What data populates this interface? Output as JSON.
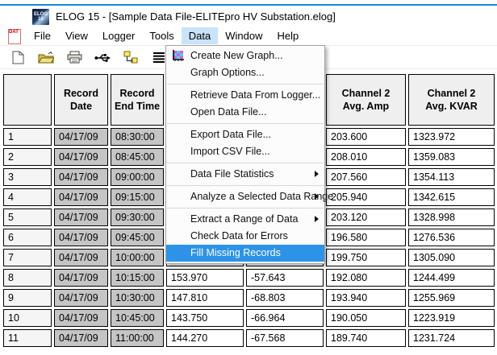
{
  "window": {
    "title": "ELOG 15 - [Sample Data File-ELITEpro HV Substation.elog]",
    "app_icon_text": "ELOG 15",
    "doc_icon_text": "DAT",
    "accent_line_color": "#1d85d8"
  },
  "menubar": {
    "items": [
      "File",
      "View",
      "Logger",
      "Tools",
      "Data",
      "Window",
      "Help"
    ],
    "active_item": "Data",
    "active_bg": "#c9e3f8"
  },
  "toolbar": {
    "icons": [
      {
        "name": "new-file-icon",
        "enabled": true
      },
      {
        "name": "open-file-icon",
        "enabled": true
      },
      {
        "name": "print-icon",
        "enabled": true
      },
      {
        "name": "usb-connection-icon",
        "enabled": true
      },
      {
        "name": "retrieve-data-icon",
        "enabled": true
      },
      {
        "name": "data-list-icon",
        "enabled": true
      },
      {
        "name": "disconnect-icon",
        "enabled": false
      }
    ]
  },
  "data_menu": {
    "highlight_color": "#2d93e8",
    "items": [
      {
        "type": "item",
        "label": "Create New Graph...",
        "icon": "graph-icon"
      },
      {
        "type": "item",
        "label": "Graph Options..."
      },
      {
        "type": "sep"
      },
      {
        "type": "item",
        "label": "Retrieve Data From Logger..."
      },
      {
        "type": "item",
        "label": "Open Data File..."
      },
      {
        "type": "sep"
      },
      {
        "type": "item",
        "label": "Export Data File..."
      },
      {
        "type": "item",
        "label": "Import CSV File..."
      },
      {
        "type": "sep"
      },
      {
        "type": "item",
        "label": "Data File Statistics",
        "submenu": true
      },
      {
        "type": "sep"
      },
      {
        "type": "item",
        "label": "Analyze a Selected Data Range",
        "submenu": true
      },
      {
        "type": "sep"
      },
      {
        "type": "item",
        "label": "Extract a Range of Data",
        "submenu": true
      },
      {
        "type": "item",
        "label": "Check Data for Errors"
      },
      {
        "type": "item",
        "label": "Fill Missing Records",
        "highlighted": true
      }
    ]
  },
  "table": {
    "headers": [
      "",
      "Record\nDate",
      "Record\nEnd Time",
      "",
      "",
      "Channel 2\nAvg. Amp",
      "Channel 2\nAvg. KVAR"
    ],
    "rows": [
      [
        "1",
        "04/17/09",
        "08:30:00",
        "",
        "",
        "203.600",
        "1323.972"
      ],
      [
        "2",
        "04/17/09",
        "08:45:00",
        "",
        "",
        "208.010",
        "1359.083"
      ],
      [
        "3",
        "04/17/09",
        "09:00:00",
        "",
        "",
        "207.560",
        "1354.113"
      ],
      [
        "4",
        "04/17/09",
        "09:15:00",
        "",
        "",
        "205.940",
        "1342.615"
      ],
      [
        "5",
        "04/17/09",
        "09:30:00",
        "",
        "",
        "203.120",
        "1328.998"
      ],
      [
        "6",
        "04/17/09",
        "09:45:00",
        "",
        "",
        "196.580",
        "1276.536"
      ],
      [
        "7",
        "04/17/09",
        "10:00:00",
        "",
        "",
        "199.750",
        "1305.090"
      ],
      [
        "8",
        "04/17/09",
        "10:15:00",
        "153.970",
        "-57.643",
        "192.080",
        "1244.499"
      ],
      [
        "9",
        "04/17/09",
        "10:30:00",
        "147.810",
        "-68.803",
        "193.940",
        "1255.969"
      ],
      [
        "10",
        "04/17/09",
        "10:45:00",
        "143.750",
        "-66.964",
        "190.050",
        "1223.919"
      ],
      [
        "11",
        "04/17/09",
        "11:00:00",
        "144.270",
        "-67.568",
        "189.740",
        "1231.724"
      ]
    ]
  }
}
